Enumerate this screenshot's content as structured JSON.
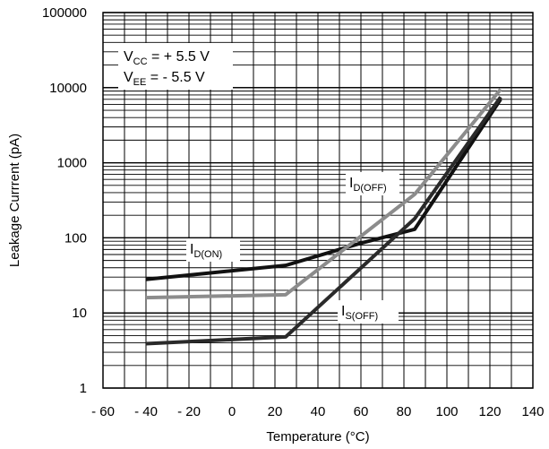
{
  "chart_data": {
    "type": "line",
    "xlabel": "Temperature (°C)",
    "ylabel": "Leakage Currrent (pA)",
    "xlim": [
      -60,
      140
    ],
    "ylim": [
      1,
      100000
    ],
    "y_scale": "log",
    "grid": true,
    "x_ticks": [
      "- 60",
      "- 40",
      "- 20",
      "0",
      "20",
      "40",
      "60",
      "80",
      "100",
      "120",
      "140"
    ],
    "x_tick_values": [
      -60,
      -40,
      -20,
      0,
      20,
      40,
      60,
      80,
      100,
      120,
      140
    ],
    "y_ticks": [
      "1",
      "10",
      "100",
      "1000",
      "10000",
      "100000"
    ],
    "y_tick_values": [
      1,
      10,
      100,
      1000,
      10000,
      100000
    ],
    "conditions": [
      {
        "main": "V",
        "sub": "CC",
        "rest": " = + 5.5 V"
      },
      {
        "main": "V",
        "sub": "EE",
        "rest": " = - 5.5 V"
      }
    ],
    "series": [
      {
        "name": "I_D(ON)",
        "label_main": "I",
        "label_sub": "D(ON)",
        "color": "#111111",
        "x": [
          -40,
          25,
          60,
          85,
          125
        ],
        "y": [
          28,
          43,
          85,
          130,
          7000
        ]
      },
      {
        "name": "I_D(OFF)",
        "label_main": "I",
        "label_sub": "D(OFF)",
        "color": "#8c8c8c",
        "x": [
          -40,
          25,
          85,
          125
        ],
        "y": [
          16,
          17.5,
          380,
          9500
        ]
      },
      {
        "name": "I_S(OFF)",
        "label_main": "I",
        "label_sub": "S(OFF)",
        "color": "#2a2a2a",
        "x": [
          -40,
          25,
          85,
          125
        ],
        "y": [
          3.9,
          4.8,
          180,
          7500
        ]
      }
    ]
  }
}
